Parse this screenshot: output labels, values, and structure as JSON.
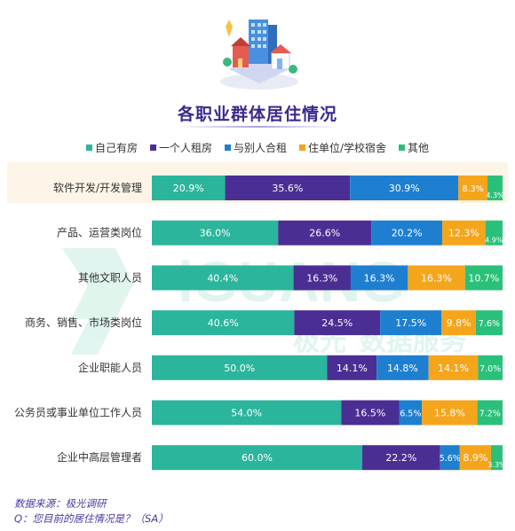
{
  "title": "各职业群体居住情况",
  "source_line": "数据来源：极光调研",
  "question_line": "Q：您目前的居住情况是？（SA）",
  "watermark_text": "数据服务",
  "watermark_brand": "极光",
  "watermark_logo_text": "iGUANG",
  "chart_data": {
    "type": "bar",
    "orientation": "horizontal",
    "stacked": true,
    "percent_scale": [
      0,
      100
    ],
    "legend_position": "top",
    "categories": [
      "软件开发/开发管理",
      "产品、运营类岗位",
      "其他文职人员",
      "商务、销售、市场类岗位",
      "企业职能人员",
      "公务员或事业单位工作人员",
      "企业中高层管理者"
    ],
    "highlighted_category": "软件开发/开发管理",
    "series": [
      {
        "name": "自己有房",
        "color": "#2bb59c",
        "values": [
          20.9,
          36.0,
          40.4,
          40.6,
          50.0,
          54.0,
          60.0
        ],
        "labels": [
          "20.9%",
          "36.0%",
          "40.4%",
          "40.6%",
          "50.0%",
          "54.0%",
          "60.0%"
        ]
      },
      {
        "name": "一个人租房",
        "color": "#4b2e94",
        "values": [
          35.6,
          26.6,
          16.3,
          24.5,
          14.1,
          16.5,
          22.2
        ],
        "labels": [
          "35.6%",
          "26.6%",
          "16.3%",
          "24.5%",
          "14.1%",
          "16.5%",
          "22.2%"
        ]
      },
      {
        "name": "与别人合租",
        "color": "#1e7fd0",
        "values": [
          30.9,
          20.2,
          16.3,
          17.5,
          14.8,
          6.5,
          5.6
        ],
        "labels": [
          "30.9%",
          "20.2%",
          "16.3%",
          "17.5%",
          "14.8%",
          "6.5%",
          "5.6%"
        ]
      },
      {
        "name": "住单位/学校宿舍",
        "color": "#f5a51b",
        "values": [
          8.3,
          12.3,
          16.3,
          9.8,
          14.1,
          15.8,
          8.9
        ],
        "labels": [
          "8.3%",
          "12.3%",
          "16.3%",
          "9.8%",
          "14.1%",
          "15.8%",
          "8.9%"
        ]
      },
      {
        "name": "其他",
        "color": "#2bc07a",
        "values": [
          4.3,
          4.9,
          10.7,
          7.6,
          7.0,
          7.2,
          3.3
        ],
        "labels": [
          "4.3%",
          "4.9%",
          "10.7%",
          "7.6%",
          "7.0%",
          "7.2%",
          "3.3%"
        ]
      }
    ]
  }
}
